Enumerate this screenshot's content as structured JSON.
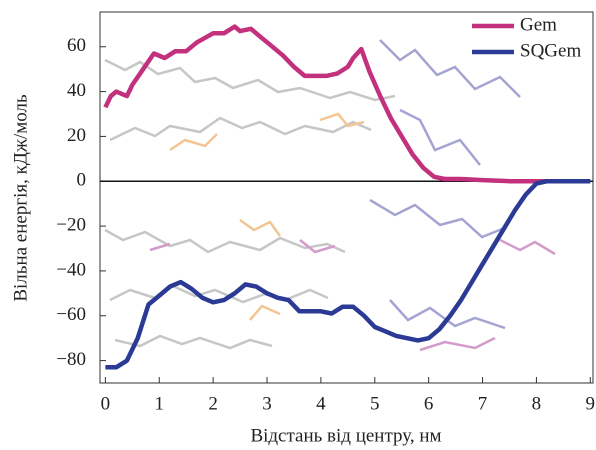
{
  "chart_data": {
    "type": "line",
    "x_label": "Відстань від центру, нм",
    "y_label": "Вільна енергія, кДж/моль",
    "xlim": [
      -0.1,
      9.05
    ],
    "ylim": [
      -90,
      75.5
    ],
    "xticks": [
      0,
      1,
      2,
      3,
      4,
      5,
      6,
      7,
      8,
      9
    ],
    "yticks": [
      {
        "value": -80,
        "label": "−80"
      },
      {
        "value": -60,
        "label": "−60"
      },
      {
        "value": -40,
        "label": "−40"
      },
      {
        "value": -20,
        "label": "−20"
      },
      0,
      20,
      40,
      60
    ],
    "legend": "upper right",
    "series": [
      {
        "name": "Gem",
        "color": "#c2307e",
        "x": [
          0,
          0.1,
          0.2,
          0.4,
          0.5,
          0.7,
          0.9,
          1.1,
          1.3,
          1.5,
          1.7,
          2.0,
          2.2,
          2.4,
          2.5,
          2.7,
          2.9,
          3.1,
          3.3,
          3.5,
          3.7,
          3.9,
          4.1,
          4.3,
          4.5,
          4.6,
          4.75,
          4.9,
          5.1,
          5.3,
          5.5,
          5.7,
          5.9,
          6.1,
          6.3,
          6.6,
          7.0,
          7.5,
          8.0,
          8.3
        ],
        "values": [
          33,
          38,
          40,
          38,
          43,
          50,
          57,
          55,
          58,
          58,
          62,
          66,
          66,
          69,
          67,
          68,
          64,
          60,
          56,
          51,
          47,
          47,
          47,
          48,
          51,
          55,
          59,
          49,
          38,
          28,
          20,
          12,
          6,
          2,
          1,
          1,
          0.5,
          0,
          0,
          0
        ]
      },
      {
        "name": "SQGem",
        "color": "#2b3a94",
        "x": [
          0,
          0.2,
          0.4,
          0.6,
          0.8,
          1.0,
          1.2,
          1.4,
          1.6,
          1.8,
          2.0,
          2.2,
          2.4,
          2.6,
          2.8,
          3.0,
          3.2,
          3.4,
          3.6,
          3.8,
          4.0,
          4.2,
          4.4,
          4.6,
          4.8,
          5.0,
          5.2,
          5.4,
          5.6,
          5.8,
          6.0,
          6.2,
          6.4,
          6.6,
          6.8,
          7.0,
          7.2,
          7.4,
          7.6,
          7.8,
          8.0,
          8.2,
          8.5,
          9.0
        ],
        "values": [
          -83,
          -83,
          -80,
          -70,
          -55,
          -51,
          -47,
          -45,
          -48,
          -52,
          -54,
          -53,
          -50,
          -46,
          -47,
          -50,
          -52,
          -53,
          -58,
          -58,
          -58,
          -59,
          -56,
          -56,
          -60,
          -65,
          -67,
          -69,
          -70,
          -71,
          -70,
          -66,
          -60,
          -53,
          -45,
          -37,
          -29,
          -21,
          -13,
          -6,
          -1,
          0,
          0,
          0
        ]
      }
    ]
  }
}
